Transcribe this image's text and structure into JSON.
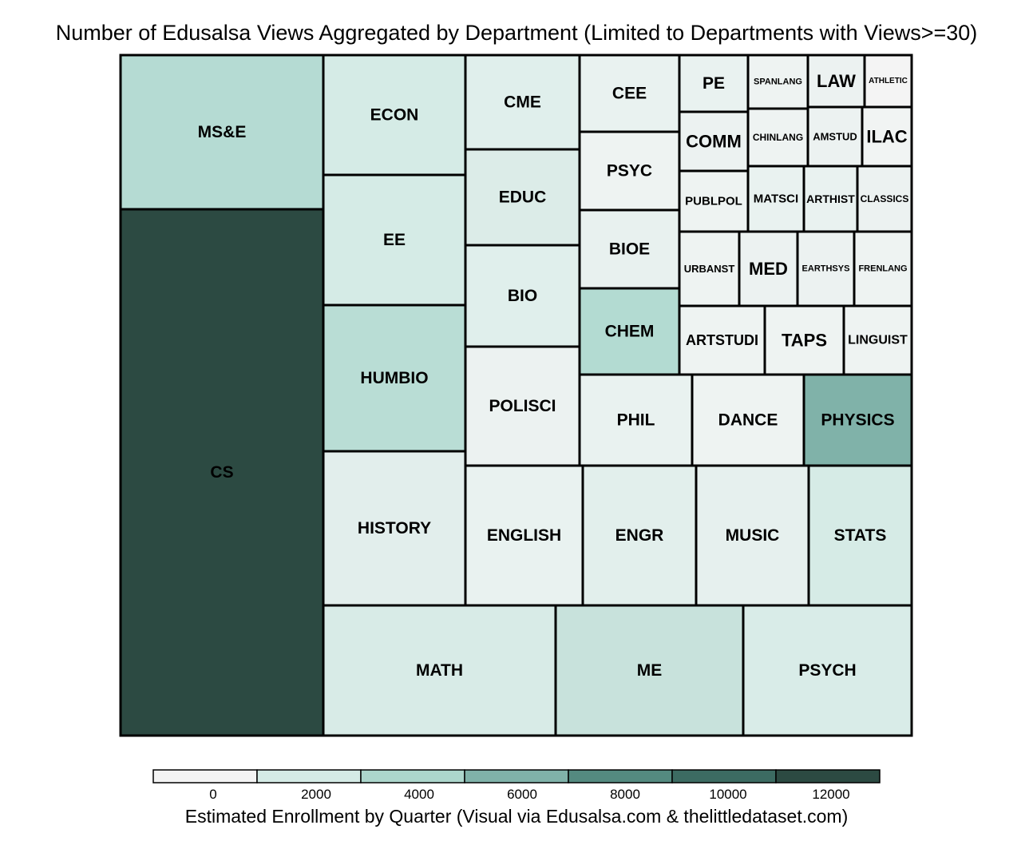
{
  "chart_data": {
    "type": "treemap",
    "title": "Number of Edusalsa Views Aggregated by Department (Limited to Departments with Views>=30)",
    "legend": {
      "caption": "Estimated Enrollment by Quarter (Visual via Edusalsa.com & thelittledataset.com)",
      "ticks": [
        "0",
        "2000",
        "4000",
        "6000",
        "8000",
        "10000",
        "12000"
      ],
      "colors": [
        "#f4f4f4",
        "#d5ebe6",
        "#acd6cc",
        "#80b2a9",
        "#548a80",
        "#3c6b62",
        "#2c4a42"
      ]
    },
    "departments": [
      {
        "name": "CS",
        "enrollment": 13000,
        "color": "#2c4a42"
      },
      {
        "name": "MS&E",
        "enrollment": 3500,
        "color": "#b5dbd3"
      },
      {
        "name": "ECON",
        "enrollment": 2000,
        "color": "#d5ebe6"
      },
      {
        "name": "EE",
        "enrollment": 2000,
        "color": "#d5ebe6"
      },
      {
        "name": "HUMBIO",
        "enrollment": 3600,
        "color": "#b9ddd5"
      },
      {
        "name": "HISTORY",
        "enrollment": 1000,
        "color": "#e2eeec"
      },
      {
        "name": "CME",
        "enrollment": 1000,
        "color": "#e0efec"
      },
      {
        "name": "EDUC",
        "enrollment": 1200,
        "color": "#dcecE8"
      },
      {
        "name": "BIO",
        "enrollment": 1000,
        "color": "#e0efec"
      },
      {
        "name": "POLISCI",
        "enrollment": 500,
        "color": "#ecf2f1"
      },
      {
        "name": "CEE",
        "enrollment": 500,
        "color": "#e9f2f0"
      },
      {
        "name": "PSYC",
        "enrollment": 300,
        "color": "#eef3f2"
      },
      {
        "name": "BIOE",
        "enrollment": 600,
        "color": "#e8f1ef"
      },
      {
        "name": "CHEM",
        "enrollment": 3800,
        "color": "#b3dbd2"
      },
      {
        "name": "PE",
        "enrollment": 500,
        "color": "#e9f2f0"
      },
      {
        "name": "SPANLANG",
        "enrollment": 200,
        "color": "#eef3f2"
      },
      {
        "name": "LAW",
        "enrollment": 300,
        "color": "#ecf2f1"
      },
      {
        "name": "ATHLETIC",
        "enrollment": 0,
        "color": "#f4f4f4"
      },
      {
        "name": "COMM",
        "enrollment": 300,
        "color": "#ecf2f1"
      },
      {
        "name": "CHINLANG",
        "enrollment": 200,
        "color": "#eef3f2"
      },
      {
        "name": "AMSTUD",
        "enrollment": 300,
        "color": "#ecf2f1"
      },
      {
        "name": "ILAC",
        "enrollment": 100,
        "color": "#f1f4f3"
      },
      {
        "name": "PUBLPOL",
        "enrollment": 200,
        "color": "#eef3f2"
      },
      {
        "name": "MATSCI",
        "enrollment": 500,
        "color": "#e9f2f0"
      },
      {
        "name": "ARTHIST",
        "enrollment": 500,
        "color": "#e9f2f0"
      },
      {
        "name": "CLASSICS",
        "enrollment": 300,
        "color": "#ecf2f1"
      },
      {
        "name": "URBANST",
        "enrollment": 200,
        "color": "#eef3f2"
      },
      {
        "name": "MED",
        "enrollment": 300,
        "color": "#ecf2f1"
      },
      {
        "name": "EARTHSYS",
        "enrollment": 300,
        "color": "#ecf2f1"
      },
      {
        "name": "FRENLANG",
        "enrollment": 200,
        "color": "#eef3f2"
      },
      {
        "name": "ARTSTUDI",
        "enrollment": 200,
        "color": "#eef3f2"
      },
      {
        "name": "TAPS",
        "enrollment": 200,
        "color": "#eef3f2"
      },
      {
        "name": "LINGUIST",
        "enrollment": 200,
        "color": "#eef3f2"
      },
      {
        "name": "PHIL",
        "enrollment": 500,
        "color": "#e9f2f0"
      },
      {
        "name": "DANCE",
        "enrollment": 200,
        "color": "#eef3f2"
      },
      {
        "name": "PHYSICS",
        "enrollment": 6000,
        "color": "#80b2a9"
      },
      {
        "name": "ENGLISH",
        "enrollment": 500,
        "color": "#e9f2f0"
      },
      {
        "name": "ENGR",
        "enrollment": 1000,
        "color": "#e2efec"
      },
      {
        "name": "MUSIC",
        "enrollment": 800,
        "color": "#e6f0ee"
      },
      {
        "name": "STATS",
        "enrollment": 1800,
        "color": "#d6ebe6"
      },
      {
        "name": "MATH",
        "enrollment": 2000,
        "color": "#d8ebe7"
      },
      {
        "name": "ME",
        "enrollment": 2500,
        "color": "#c8e2dc"
      },
      {
        "name": "PSYCH",
        "enrollment": 1800,
        "color": "#d9ece8"
      }
    ]
  }
}
